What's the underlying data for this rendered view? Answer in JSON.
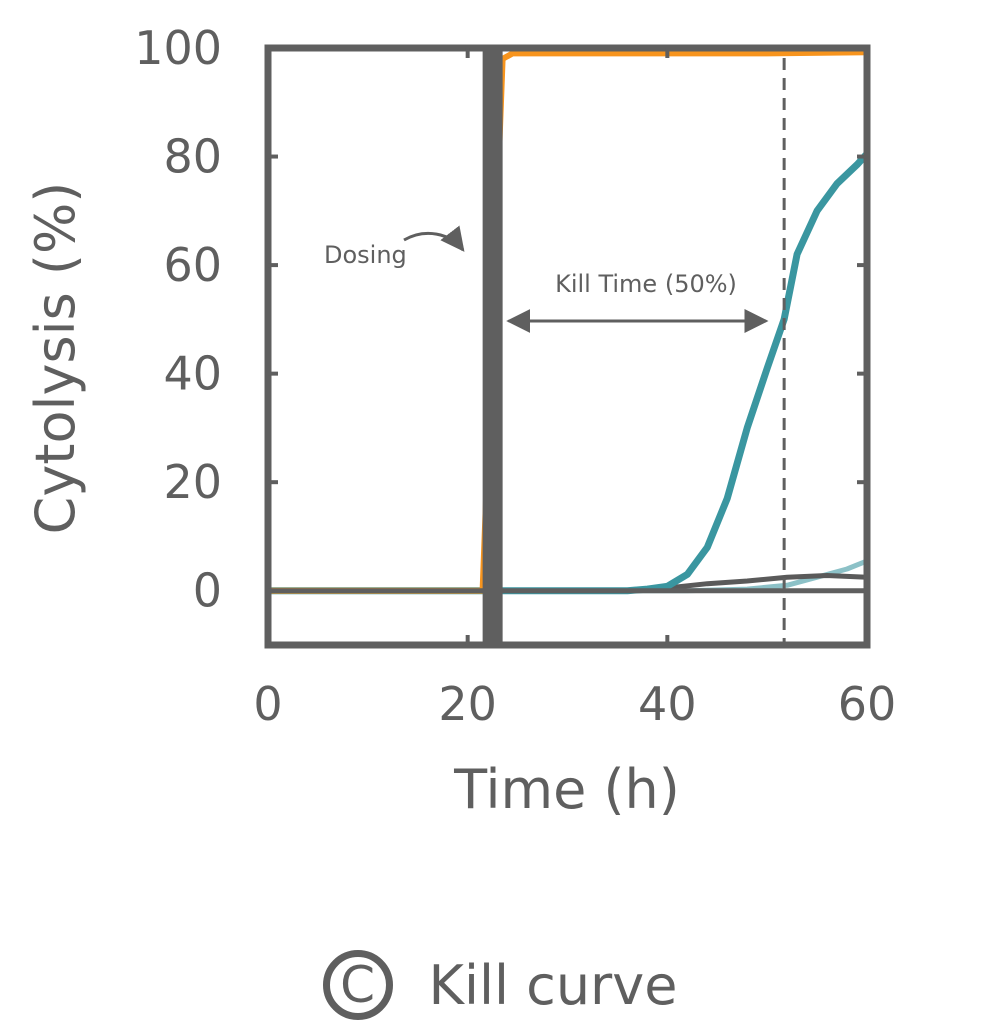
{
  "chart_data": {
    "type": "line",
    "xlabel": "Time (h)",
    "ylabel": "Cytolysis (%)",
    "xlim": [
      0,
      60
    ],
    "ylim": [
      -10,
      100
    ],
    "xticks": [
      0,
      20,
      40,
      60
    ],
    "yticks": [
      0,
      20,
      40,
      60,
      80,
      100
    ],
    "grid": false,
    "legend": "none",
    "dosing_time": 22.5,
    "kill_time_50": 51.7,
    "annotations": {
      "dosing": "Dosing",
      "kill_time": "Kill Time (50%)"
    },
    "series": [
      {
        "color": "#f7941d",
        "x": [
          0,
          21.5,
          23.5,
          24.5,
          30,
          40,
          50,
          60
        ],
        "y": [
          0,
          0,
          98,
          99,
          99,
          99,
          99,
          99.2
        ]
      },
      {
        "color": "#3a96a0",
        "x": [
          0,
          20,
          30,
          36,
          38,
          40,
          42,
          44,
          46,
          48,
          50,
          51.7,
          53,
          55,
          57,
          59,
          60
        ],
        "y": [
          0,
          0,
          0,
          0,
          0.3,
          0.8,
          3,
          8,
          17,
          30,
          41,
          50,
          62,
          70,
          75,
          78.5,
          80.5
        ]
      },
      {
        "color": "#5a5a5a",
        "x": [
          0,
          20,
          36,
          40,
          44,
          48,
          52,
          56,
          60
        ],
        "y": [
          0,
          0,
          0,
          0.5,
          1.3,
          1.8,
          2.5,
          2.8,
          2.5
        ]
      },
      {
        "color": "#8cc1c7",
        "x": [
          0,
          36,
          42,
          48,
          52,
          55,
          58,
          60
        ],
        "y": [
          0,
          0,
          0,
          0.3,
          1,
          2.5,
          4,
          5.5
        ]
      }
    ]
  },
  "caption": {
    "letter": "C",
    "text": "Kill curve"
  }
}
